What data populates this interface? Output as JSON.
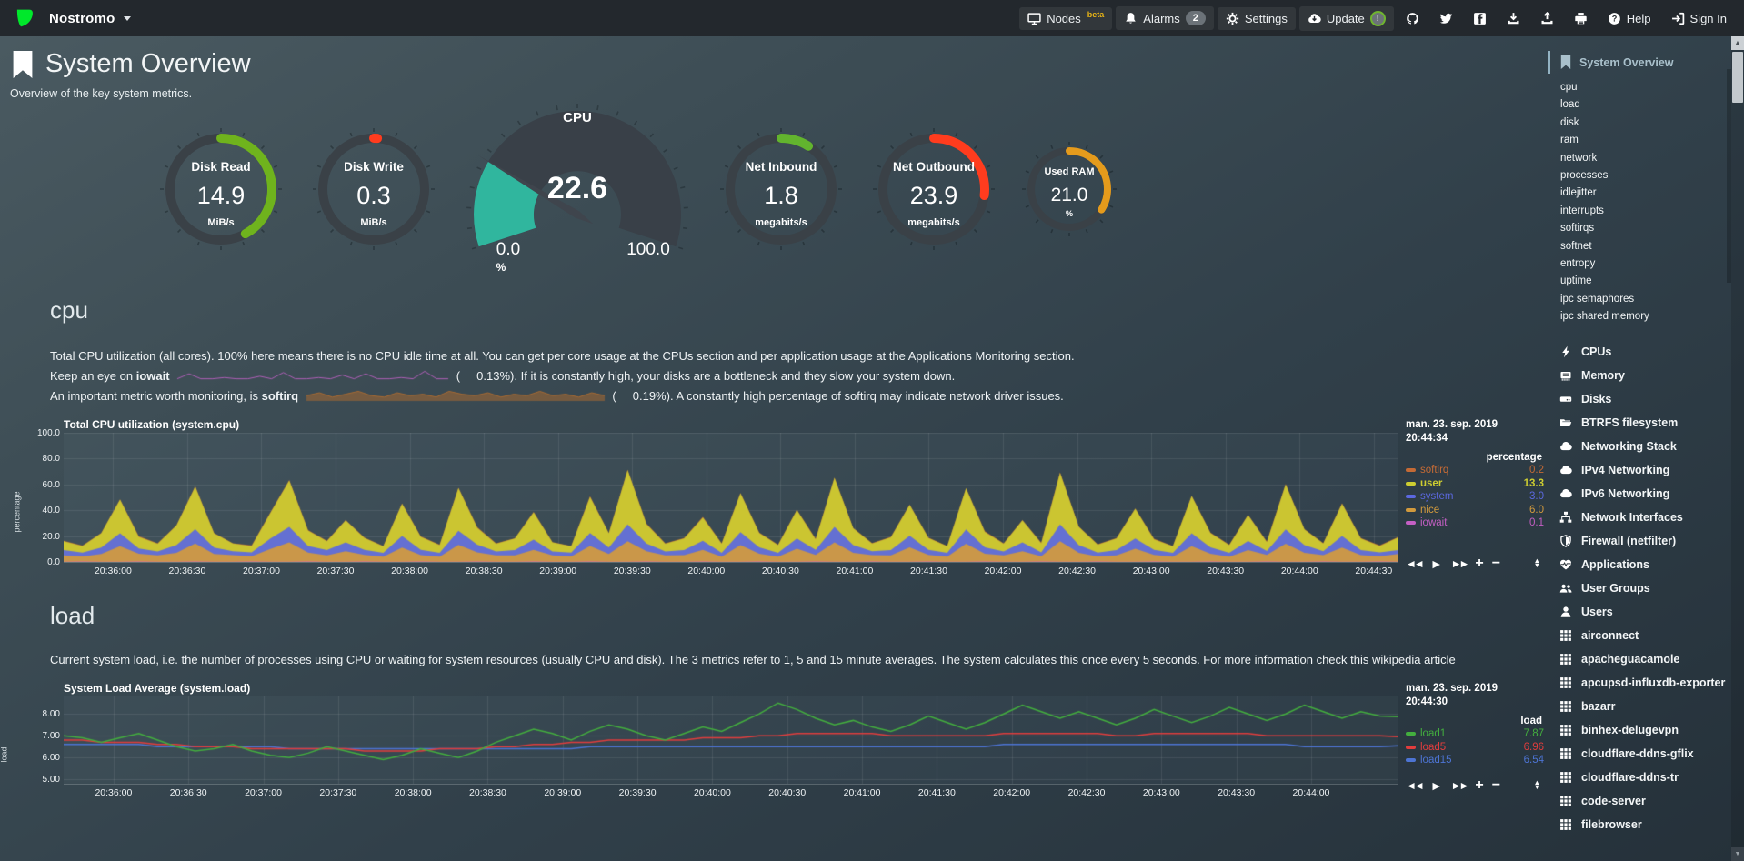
{
  "header": {
    "hostname": "Nostromo",
    "nav": [
      {
        "name": "nodes",
        "icon": "monitor",
        "label": "Nodes",
        "sup": "beta",
        "boxed": true
      },
      {
        "name": "alarms",
        "icon": "bell",
        "label": "Alarms",
        "badge": "2",
        "boxed": true
      },
      {
        "name": "settings",
        "icon": "gear",
        "label": "Settings",
        "boxed": true
      },
      {
        "name": "update",
        "icon": "cloud-download",
        "label": "Update",
        "ringbadge": "!",
        "boxed": true
      },
      {
        "name": "github",
        "icon": "github"
      },
      {
        "name": "twitter",
        "icon": "twitter"
      },
      {
        "name": "facebook",
        "icon": "facebook"
      },
      {
        "name": "download",
        "icon": "download"
      },
      {
        "name": "upload",
        "icon": "upload"
      },
      {
        "name": "print",
        "icon": "print"
      },
      {
        "name": "help",
        "icon": "question",
        "label": "Help"
      },
      {
        "name": "sign-in",
        "icon": "sign-in",
        "label": "Sign In"
      }
    ]
  },
  "page": {
    "title": "System Overview",
    "subtitle": "Overview of the key system metrics."
  },
  "gauges": [
    {
      "name": "disk-read",
      "style": "ring",
      "title": "Disk Read",
      "value": "14.9",
      "unit": "MiB/s",
      "color": "#6fb31d",
      "fraction": 0.42
    },
    {
      "name": "disk-write",
      "style": "ring",
      "title": "Disk Write",
      "value": "0.3",
      "unit": "MiB/s",
      "color": "#ff3c1e",
      "fraction": 0.012
    },
    {
      "name": "cpu",
      "style": "gauge",
      "title": "CPU",
      "value": "22.6",
      "min": "0.0",
      "max": "100.0",
      "unit": "%",
      "color": "#30b69e",
      "fraction": 0.226
    },
    {
      "name": "net-inbound",
      "style": "ring",
      "title": "Net Inbound",
      "value": "1.8",
      "unit": "megabits/s",
      "color": "#62b42e",
      "fraction": 0.09
    },
    {
      "name": "net-outbound",
      "style": "ring",
      "title": "Net Outbound",
      "value": "23.9",
      "unit": "megabits/s",
      "color": "#ff3c1e",
      "fraction": 0.27
    },
    {
      "name": "used-ram",
      "style": "ring",
      "small": true,
      "title": "Used RAM",
      "value": "21.0",
      "unit": "%",
      "color": "#e59b1c",
      "fraction": 0.34
    }
  ],
  "sections": {
    "cpu": {
      "heading": "cpu",
      "p1": "Total CPU utilization (all cores). 100% here means there is no CPU idle time at all. You can get per core usage at the CPUs section and per application usage at the Applications Monitoring section.",
      "iowait_line": {
        "before": "Keep an eye on",
        "term": "iowait",
        "paren": "(     0.13%).",
        "after": "If it is constantly high, your disks are a bottleneck and they slow your system down."
      },
      "softirq_line": {
        "before": "An important metric worth monitoring, is",
        "term": "softirq",
        "paren": "(     0.19%).",
        "after": "A constantly high percentage of softirq may indicate network driver issues."
      }
    },
    "load": {
      "heading": "load",
      "p1": "Current system load, i.e. the number of processes using CPU or waiting for system resources (usually CPU and disk). The 3 metrics refer to 1, 5 and 15 minute averages. The system calculates this once every 5 seconds. For more information check this wikipedia article"
    }
  },
  "chart_data": [
    {
      "type": "area",
      "title": "Total CPU utilization (system.cpu)",
      "ylabel": "percentage",
      "unit": "percentage",
      "legend_date": "man. 23. sep. 2019",
      "legend_time": "20:44:34",
      "ylim": [
        0,
        100
      ],
      "yticks": [
        {
          "v": 0,
          "label": "0.0"
        },
        {
          "v": 20,
          "label": "20.0"
        },
        {
          "v": 40,
          "label": "40.0"
        },
        {
          "v": 60,
          "label": "60.0"
        },
        {
          "v": 80,
          "label": "80.0"
        },
        {
          "v": 100,
          "label": "100.0"
        }
      ],
      "xticks": [
        "20:36:00",
        "20:36:30",
        "20:37:00",
        "20:37:30",
        "20:38:00",
        "20:38:30",
        "20:39:00",
        "20:39:30",
        "20:40:00",
        "20:40:30",
        "20:41:00",
        "20:41:30",
        "20:42:00",
        "20:42:30",
        "20:43:00",
        "20:43:30",
        "20:44:00",
        "20:44:30"
      ],
      "series": [
        {
          "name": "softirq",
          "color": "#c46a35",
          "value": "0.2",
          "values": [
            0.2,
            0.4,
            0.3,
            0.2,
            0.5,
            0.3,
            0.2,
            0.4,
            0.3,
            0.2,
            0.5,
            0.3,
            0.2,
            0.4,
            0.3,
            0.2,
            0.5,
            0.3,
            0.2,
            0.4,
            0.3,
            0.2,
            0.5,
            0.3,
            0.2,
            0.4,
            0.3,
            0.2,
            0.5,
            0.3,
            0.2,
            0.4,
            0.3,
            0.2,
            0.5,
            0.3,
            0.2,
            0.4,
            0.3,
            0.2,
            0.5,
            0.3,
            0.2,
            0.4,
            0.3,
            0.2,
            0.5,
            0.3,
            0.2,
            0.4,
            0.3,
            0.2,
            0.5,
            0.3,
            0.2,
            0.4,
            0.3,
            0.2,
            0.5,
            0.3,
            0.2,
            0.4,
            0.3,
            0.2,
            0.5,
            0.3,
            0.2,
            0.4,
            0.3,
            0.2,
            0.5,
            0.3
          ]
        },
        {
          "name": "user",
          "color": "#cdcd31",
          "value": "13.3",
          "bold": true,
          "values": [
            7,
            5,
            11,
            26,
            9,
            6,
            15,
            33,
            11,
            6,
            5,
            20,
            36,
            12,
            7,
            17,
            9,
            5,
            25,
            10,
            6,
            33,
            13,
            6,
            9,
            21,
            7,
            5,
            28,
            11,
            42,
            15,
            6,
            9,
            18,
            7,
            30,
            11,
            6,
            22,
            8,
            38,
            13,
            6,
            10,
            24,
            9,
            5,
            32,
            12,
            6,
            17,
            7,
            40,
            14,
            6,
            9,
            23,
            8,
            5,
            29,
            11,
            6,
            20,
            7,
            35,
            12,
            6,
            25,
            9,
            5,
            10
          ]
        },
        {
          "name": "system",
          "color": "#5b68df",
          "value": "3.0",
          "values": [
            4,
            3,
            5,
            10,
            4,
            3,
            6,
            11,
            5,
            3,
            3,
            8,
            12,
            5,
            4,
            7,
            4,
            3,
            9,
            4,
            3,
            11,
            6,
            3,
            4,
            8,
            3,
            3,
            10,
            5,
            13,
            6,
            3,
            4,
            7,
            3,
            10,
            5,
            3,
            8,
            4,
            12,
            6,
            3,
            4,
            9,
            4,
            3,
            11,
            5,
            3,
            7,
            3,
            13,
            6,
            3,
            4,
            8,
            4,
            3,
            10,
            5,
            3,
            7,
            3,
            11,
            6,
            3,
            9,
            4,
            3,
            3
          ]
        },
        {
          "name": "nice",
          "color": "#d29a3d",
          "value": "6.0",
          "values": [
            5,
            4,
            6,
            12,
            6,
            5,
            7,
            14,
            6,
            5,
            4,
            10,
            15,
            7,
            5,
            8,
            5,
            4,
            11,
            5,
            4,
            13,
            7,
            5,
            5,
            9,
            5,
            4,
            12,
            6,
            16,
            8,
            5,
            5,
            9,
            4,
            13,
            6,
            4,
            10,
            5,
            15,
            7,
            5,
            5,
            11,
            5,
            4,
            14,
            6,
            5,
            8,
            4,
            16,
            7,
            4,
            5,
            10,
            5,
            4,
            12,
            6,
            4,
            9,
            5,
            14,
            7,
            5,
            11,
            5,
            4,
            6
          ]
        },
        {
          "name": "iowait",
          "color": "#c45fc4",
          "value": "0.1",
          "values": [
            0.1,
            0.3,
            0.1,
            0.2,
            0.4,
            0.1,
            0.1,
            0.3,
            0.1,
            0.2,
            0.4,
            0.1,
            0.1,
            0.3,
            0.1,
            0.2,
            0.4,
            0.1,
            0.1,
            0.3,
            0.1,
            0.2,
            0.4,
            0.1,
            0.1,
            0.3,
            0.1,
            0.2,
            0.4,
            0.1,
            0.1,
            0.3,
            0.1,
            0.2,
            0.4,
            0.1,
            0.1,
            0.3,
            0.1,
            0.2,
            0.4,
            0.1,
            0.1,
            0.3,
            0.1,
            0.2,
            0.4,
            0.1,
            0.1,
            0.3,
            0.1,
            0.2,
            0.4,
            0.1,
            0.1,
            0.3,
            0.1,
            0.2,
            0.4,
            0.1,
            0.1,
            0.3,
            0.1,
            0.2,
            0.4,
            0.1,
            0.1,
            0.3,
            0.1,
            0.2,
            0.4,
            0.1
          ]
        }
      ]
    },
    {
      "type": "line",
      "title": "System Load Average (system.load)",
      "ylabel": "load",
      "unit": "load",
      "legend_date": "man. 23. sep. 2019",
      "legend_time": "20:44:30",
      "ylim": [
        4.8,
        8.8
      ],
      "yticks": [
        {
          "v": 5,
          "label": "5.00"
        },
        {
          "v": 6,
          "label": "6.00"
        },
        {
          "v": 7,
          "label": "7.00"
        },
        {
          "v": 8,
          "label": "8.00"
        }
      ],
      "xticks": [
        "20:36:00",
        "20:36:30",
        "20:37:00",
        "20:37:30",
        "20:38:00",
        "20:38:30",
        "20:39:00",
        "20:39:30",
        "20:40:00",
        "20:40:30",
        "20:41:00",
        "20:41:30",
        "20:42:00",
        "20:42:30",
        "20:43:00",
        "20:43:30",
        "20:44:00"
      ],
      "series": [
        {
          "name": "load1",
          "color": "#43ae3e",
          "value": "7.87",
          "values": [
            7.0,
            6.9,
            6.7,
            6.9,
            7.1,
            6.8,
            6.5,
            6.3,
            6.4,
            6.6,
            6.3,
            6.1,
            6.0,
            6.2,
            6.5,
            6.3,
            6.1,
            5.9,
            6.1,
            6.4,
            6.2,
            6.0,
            6.3,
            6.7,
            7.0,
            7.3,
            7.1,
            6.8,
            7.2,
            7.5,
            7.3,
            7.0,
            6.8,
            7.1,
            7.4,
            7.2,
            7.6,
            8.0,
            8.5,
            8.2,
            7.8,
            7.5,
            7.7,
            7.4,
            7.2,
            7.5,
            7.9,
            7.6,
            7.3,
            7.6,
            8.0,
            8.4,
            8.1,
            7.8,
            8.1,
            7.8,
            7.5,
            7.8,
            8.2,
            7.9,
            7.6,
            7.9,
            8.3,
            8.0,
            7.7,
            8.0,
            8.4,
            8.1,
            7.8,
            8.1,
            7.9,
            7.87
          ]
        },
        {
          "name": "load5",
          "color": "#e23d3d",
          "value": "6.96",
          "values": [
            6.8,
            6.8,
            6.7,
            6.7,
            6.7,
            6.6,
            6.6,
            6.5,
            6.5,
            6.5,
            6.4,
            6.4,
            6.4,
            6.4,
            6.4,
            6.4,
            6.3,
            6.3,
            6.3,
            6.3,
            6.4,
            6.4,
            6.4,
            6.5,
            6.5,
            6.6,
            6.6,
            6.7,
            6.7,
            6.8,
            6.8,
            6.8,
            6.8,
            6.8,
            6.9,
            6.9,
            6.9,
            7.0,
            7.0,
            7.1,
            7.1,
            7.1,
            7.1,
            7.1,
            7.0,
            7.0,
            7.0,
            7.0,
            7.0,
            7.0,
            7.1,
            7.1,
            7.1,
            7.1,
            7.1,
            7.1,
            7.0,
            7.0,
            7.1,
            7.1,
            7.1,
            7.1,
            7.1,
            7.1,
            7.0,
            7.0,
            7.0,
            7.0,
            7.0,
            7.0,
            7.0,
            6.96
          ]
        },
        {
          "name": "load15",
          "color": "#4d74d4",
          "value": "6.54",
          "values": [
            6.6,
            6.6,
            6.6,
            6.6,
            6.6,
            6.5,
            6.5,
            6.5,
            6.5,
            6.5,
            6.5,
            6.5,
            6.4,
            6.4,
            6.4,
            6.4,
            6.4,
            6.4,
            6.4,
            6.4,
            6.4,
            6.4,
            6.4,
            6.4,
            6.4,
            6.4,
            6.4,
            6.4,
            6.5,
            6.5,
            6.5,
            6.5,
            6.5,
            6.5,
            6.5,
            6.5,
            6.5,
            6.5,
            6.5,
            6.5,
            6.5,
            6.5,
            6.5,
            6.5,
            6.5,
            6.5,
            6.5,
            6.5,
            6.5,
            6.5,
            6.6,
            6.6,
            6.6,
            6.6,
            6.6,
            6.6,
            6.6,
            6.6,
            6.6,
            6.6,
            6.6,
            6.6,
            6.6,
            6.6,
            6.6,
            6.6,
            6.5,
            6.5,
            6.5,
            6.5,
            6.5,
            6.54
          ]
        }
      ]
    }
  ],
  "sparklines": {
    "iowait": {
      "color": "#b05fb8",
      "values": [
        0.1,
        0.5,
        0.1,
        0.1,
        0.2,
        0.1,
        0.1,
        0.3,
        0.1,
        0.6,
        0.1,
        0.1,
        0.2,
        0.1,
        0.4,
        0.1,
        0.5,
        0.1,
        0.1,
        0.2,
        0.1,
        0.7,
        0.1,
        0.1
      ]
    },
    "softirq": {
      "color": "#a86a32",
      "values": [
        0.3,
        0.5,
        0.2,
        0.4,
        0.6,
        0.3,
        0.2,
        0.5,
        0.3,
        0.4,
        0.2,
        0.6,
        0.4,
        0.3,
        0.5,
        0.2,
        0.4,
        0.3,
        0.6,
        0.3,
        0.4,
        0.2,
        0.5,
        0.3
      ]
    }
  },
  "sidebar": {
    "active": {
      "label": "System Overview"
    },
    "sub_items": [
      "cpu",
      "load",
      "disk",
      "ram",
      "network",
      "processes",
      "idlejitter",
      "interrupts",
      "softirqs",
      "softnet",
      "entropy",
      "uptime",
      "ipc semaphores",
      "ipc shared memory"
    ],
    "menu_items": [
      {
        "icon": "bolt",
        "label": "CPUs"
      },
      {
        "icon": "memory",
        "label": "Memory"
      },
      {
        "icon": "hdd",
        "label": "Disks"
      },
      {
        "icon": "folder",
        "label": "BTRFS filesystem"
      },
      {
        "icon": "cloud",
        "label": "Networking Stack"
      },
      {
        "icon": "cloud",
        "label": "IPv4 Networking"
      },
      {
        "icon": "cloud",
        "label": "IPv6 Networking"
      },
      {
        "icon": "sitemap",
        "label": "Network Interfaces"
      },
      {
        "icon": "shield",
        "label": "Firewall (netfilter)"
      },
      {
        "icon": "heartbeat",
        "label": "Applications"
      },
      {
        "icon": "users",
        "label": "User Groups"
      },
      {
        "icon": "user",
        "label": "Users"
      },
      {
        "icon": "grid",
        "label": "airconnect"
      },
      {
        "icon": "grid",
        "label": "apacheguacamole"
      },
      {
        "icon": "grid",
        "label": "apcupsd-influxdb-exporter"
      },
      {
        "icon": "grid",
        "label": "bazarr"
      },
      {
        "icon": "grid",
        "label": "binhex-delugevpn"
      },
      {
        "icon": "grid",
        "label": "cloudflare-ddns-gflix"
      },
      {
        "icon": "grid",
        "label": "cloudflare-ddns-tr"
      },
      {
        "icon": "grid",
        "label": "code-server"
      },
      {
        "icon": "grid",
        "label": "filebrowser"
      }
    ]
  }
}
